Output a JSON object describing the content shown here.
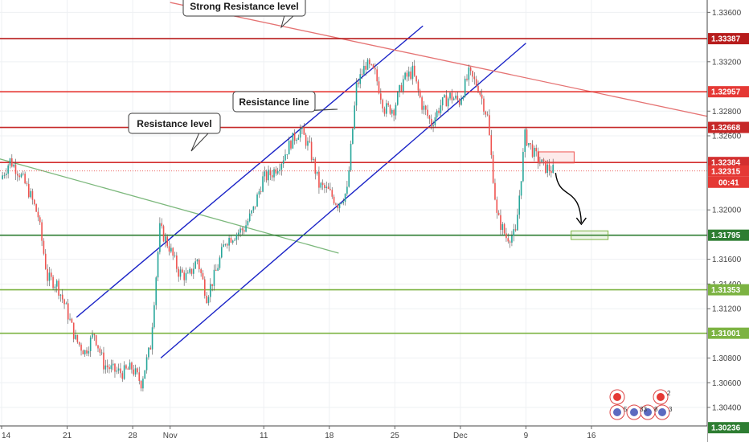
{
  "chart_data": {
    "type": "candlestick",
    "title": "",
    "xlabel": "",
    "ylabel": "",
    "ylim": [
      1.3012,
      1.337
    ],
    "price_ticks": [
      "1.33600",
      "1.33200",
      "1.32800",
      "1.32600",
      "1.32000",
      "1.31600",
      "1.31400",
      "1.31200",
      "1.30800",
      "1.30600",
      "1.30400"
    ],
    "x_ticks": [
      {
        "label": "14",
        "date": "2019-10-14"
      },
      {
        "label": "21",
        "date": "2019-10-21"
      },
      {
        "label": "28",
        "date": "2019-10-28"
      },
      {
        "label": "Nov",
        "date": "2019-11-01"
      },
      {
        "label": "11",
        "date": "2019-11-11"
      },
      {
        "label": "18",
        "date": "2019-11-18"
      },
      {
        "label": "25",
        "date": "2019-11-25"
      },
      {
        "label": "Dec",
        "date": "2019-12-02"
      },
      {
        "label": "9",
        "date": "2019-12-09"
      },
      {
        "label": "16",
        "date": "2019-12-16"
      }
    ],
    "horizontal_levels": [
      {
        "label": "1.33387",
        "value": 1.33387,
        "color": "#b71c1c"
      },
      {
        "label": "1.32957",
        "value": 1.32957,
        "color": "#e53935"
      },
      {
        "label": "1.32668",
        "value": 1.32668,
        "color": "#c62828"
      },
      {
        "label": "1.32384",
        "value": 1.32384,
        "color": "#d32f2f"
      },
      {
        "label": "1.31795",
        "value": 1.31795,
        "color": "#2e7d32"
      },
      {
        "label": "1.31353",
        "value": 1.31353,
        "color": "#7cb342"
      },
      {
        "label": "1.31001",
        "value": 1.31001,
        "color": "#7cb342"
      },
      {
        "label": "1.30236",
        "value": 1.30236,
        "color": "#2e7d32"
      }
    ],
    "current_price": {
      "label": "1.32315",
      "value": 1.32315,
      "color": "#e53935"
    },
    "countdown": "00:41",
    "annotations": [
      {
        "text": "Strong Resistance level"
      },
      {
        "text": "Resistance line"
      },
      {
        "text": "Resistance level"
      }
    ],
    "badges": [
      "5",
      "33",
      "8",
      "3",
      "2"
    ],
    "price_path": [
      [
        "2019-10-14",
        1.3225
      ],
      [
        "2019-10-15",
        1.324
      ],
      [
        "2019-10-16",
        1.323
      ],
      [
        "2019-10-17",
        1.3215
      ],
      [
        "2019-10-18",
        1.3195
      ],
      [
        "2019-10-19",
        1.3145
      ],
      [
        "2019-10-20",
        1.314
      ],
      [
        "2019-10-21",
        1.312
      ],
      [
        "2019-10-22",
        1.3095
      ],
      [
        "2019-10-23",
        1.3085
      ],
      [
        "2019-10-24",
        1.31
      ],
      [
        "2019-10-25",
        1.3075
      ],
      [
        "2019-10-26",
        1.307
      ],
      [
        "2019-10-27",
        1.3068
      ],
      [
        "2019-10-28",
        1.3072
      ],
      [
        "2019-10-29",
        1.306
      ],
      [
        "2019-10-30",
        1.309
      ],
      [
        "2019-10-31",
        1.3185
      ],
      [
        "2019-11-01",
        1.317
      ],
      [
        "2019-11-02",
        1.315
      ],
      [
        "2019-11-03",
        1.3145
      ],
      [
        "2019-11-04",
        1.316
      ],
      [
        "2019-11-05",
        1.313
      ],
      [
        "2019-11-06",
        1.315
      ],
      [
        "2019-11-07",
        1.3175
      ],
      [
        "2019-11-08",
        1.318
      ],
      [
        "2019-11-09",
        1.3185
      ],
      [
        "2019-11-10",
        1.32
      ],
      [
        "2019-11-11",
        1.3225
      ],
      [
        "2019-11-12",
        1.323
      ],
      [
        "2019-11-13",
        1.324
      ],
      [
        "2019-11-14",
        1.3255
      ],
      [
        "2019-11-15",
        1.3265
      ],
      [
        "2019-11-16",
        1.325
      ],
      [
        "2019-11-17",
        1.322
      ],
      [
        "2019-11-18",
        1.3215
      ],
      [
        "2019-11-19",
        1.3205
      ],
      [
        "2019-11-20",
        1.3215
      ],
      [
        "2019-11-21",
        1.33
      ],
      [
        "2019-11-22",
        1.3318
      ],
      [
        "2019-11-23",
        1.331
      ],
      [
        "2019-11-24",
        1.3282
      ],
      [
        "2019-11-25",
        1.3282
      ],
      [
        "2019-11-26",
        1.3305
      ],
      [
        "2019-11-27",
        1.3312
      ],
      [
        "2019-11-28",
        1.3285
      ],
      [
        "2019-11-29",
        1.327
      ],
      [
        "2019-11-30",
        1.3285
      ],
      [
        "2019-12-01",
        1.3292
      ],
      [
        "2019-12-02",
        1.3288
      ],
      [
        "2019-12-03",
        1.331
      ],
      [
        "2019-12-04",
        1.33
      ],
      [
        "2019-12-05",
        1.3275
      ],
      [
        "2019-12-06",
        1.3195
      ],
      [
        "2019-12-07",
        1.3178
      ],
      [
        "2019-12-08",
        1.318
      ],
      [
        "2019-12-09",
        1.326
      ],
      [
        "2019-12-10",
        1.3245
      ],
      [
        "2019-12-11",
        1.3235
      ],
      [
        "2019-12-12",
        1.3232
      ]
    ]
  }
}
